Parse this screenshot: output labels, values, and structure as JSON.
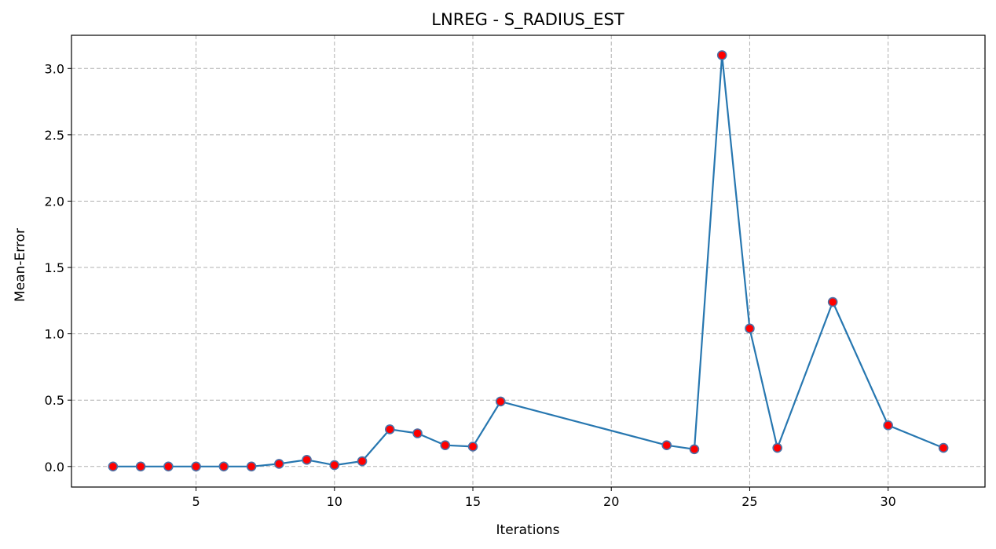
{
  "chart_data": {
    "type": "line",
    "title": "LNREG - S_RADIUS_EST",
    "xlabel": "Iterations",
    "ylabel": "Mean-Error",
    "xlim": [
      0.5,
      33.5
    ],
    "ylim": [
      -0.155,
      3.25
    ],
    "xticks": [
      5,
      10,
      15,
      20,
      25,
      30
    ],
    "yticks": [
      0.0,
      0.5,
      1.0,
      1.5,
      2.0,
      2.5,
      3.0
    ],
    "ytick_labels": [
      "0.0",
      "0.5",
      "1.0",
      "1.5",
      "2.0",
      "2.5",
      "3.0"
    ],
    "grid": true,
    "line_color": "#2777b0",
    "marker_face_color": "#ff0000",
    "marker_edge_color": "#4a72a8",
    "series": [
      {
        "x": [
          2,
          3,
          4,
          5,
          6,
          7,
          8,
          9,
          10,
          11,
          12,
          13,
          14,
          15,
          16,
          22,
          23,
          24,
          25,
          26,
          28,
          30,
          32
        ],
        "values": [
          0.0,
          0.0,
          0.0,
          0.0,
          0.0,
          0.0,
          0.02,
          0.05,
          0.01,
          0.04,
          0.28,
          0.25,
          0.16,
          0.15,
          0.49,
          0.16,
          0.13,
          3.1,
          1.04,
          0.14,
          1.24,
          0.31,
          0.14
        ]
      }
    ]
  }
}
